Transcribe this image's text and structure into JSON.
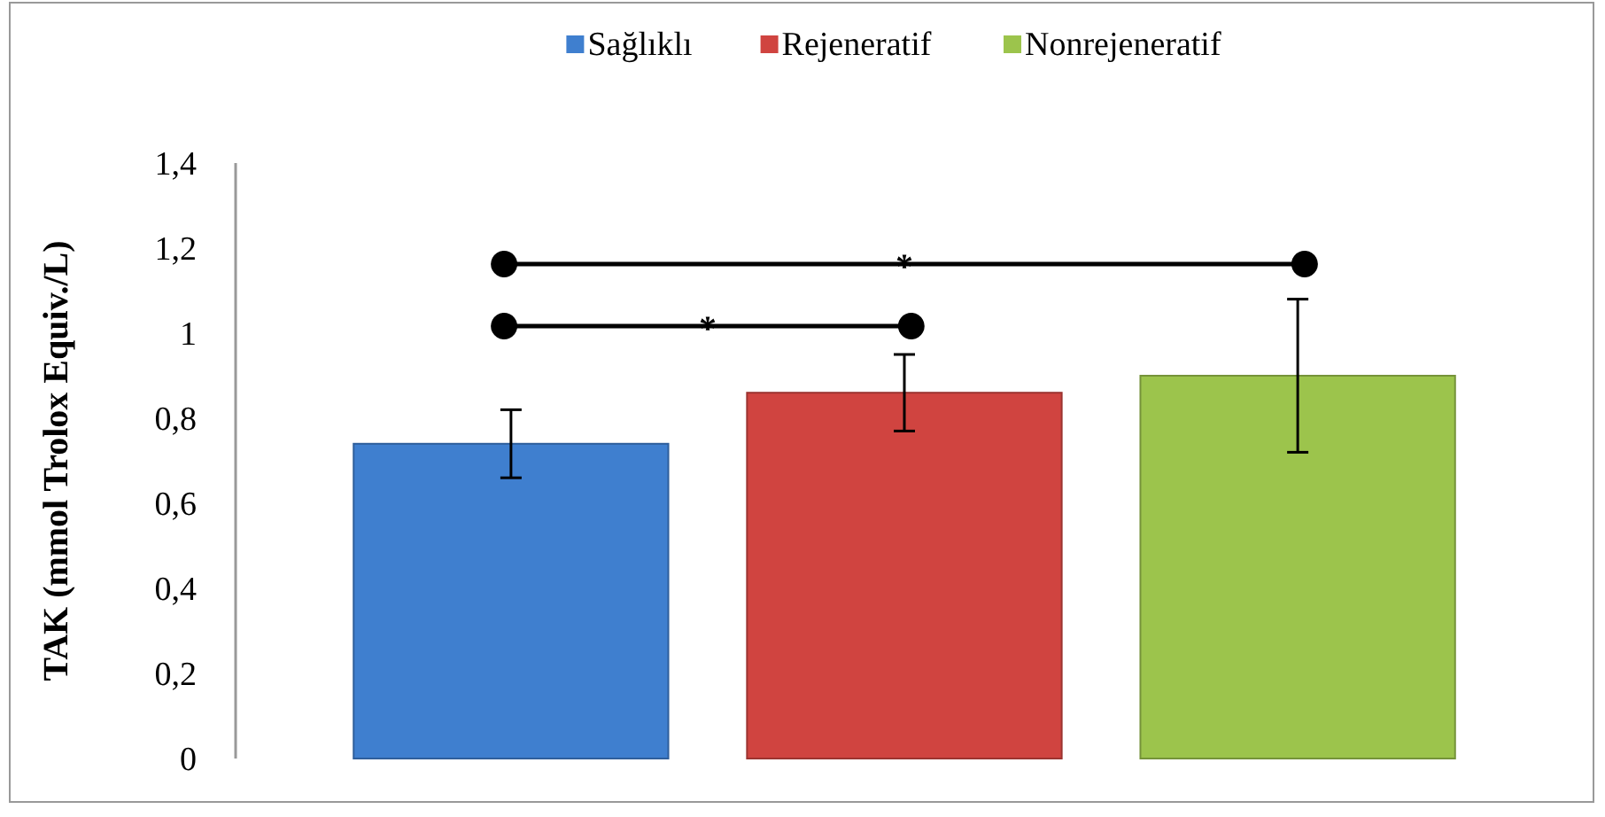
{
  "chart_data": {
    "type": "bar",
    "ylabel": "TAK (mmol Trolox Equiv./L)",
    "categories": [
      null
    ],
    "series": [
      {
        "name": "Sağlıklı",
        "color": "#3f7fcf",
        "values": [
          0.74
        ],
        "errors": [
          0.08
        ]
      },
      {
        "name": "Rejeneratif",
        "color": "#d04440",
        "values": [
          0.86
        ],
        "errors": [
          0.09
        ]
      },
      {
        "name": "Nonrejeneratif",
        "color": "#9cc44c",
        "values": [
          0.9
        ],
        "errors": [
          0.18
        ]
      }
    ],
    "ylim": [
      0,
      1.4
    ],
    "yticks": [
      {
        "value": 0,
        "label": "0"
      },
      {
        "value": 0.2,
        "label": "0,2"
      },
      {
        "value": 0.4,
        "label": "0,4"
      },
      {
        "value": 0.6,
        "label": "0,6"
      },
      {
        "value": 0.8,
        "label": "0,8"
      },
      {
        "value": 1,
        "label": "1"
      },
      {
        "value": 1.2,
        "label": "1,2"
      },
      {
        "value": 1.4,
        "label": "1,4"
      }
    ],
    "annotations": [
      "*",
      "*"
    ],
    "grid": false,
    "legend": "top"
  }
}
